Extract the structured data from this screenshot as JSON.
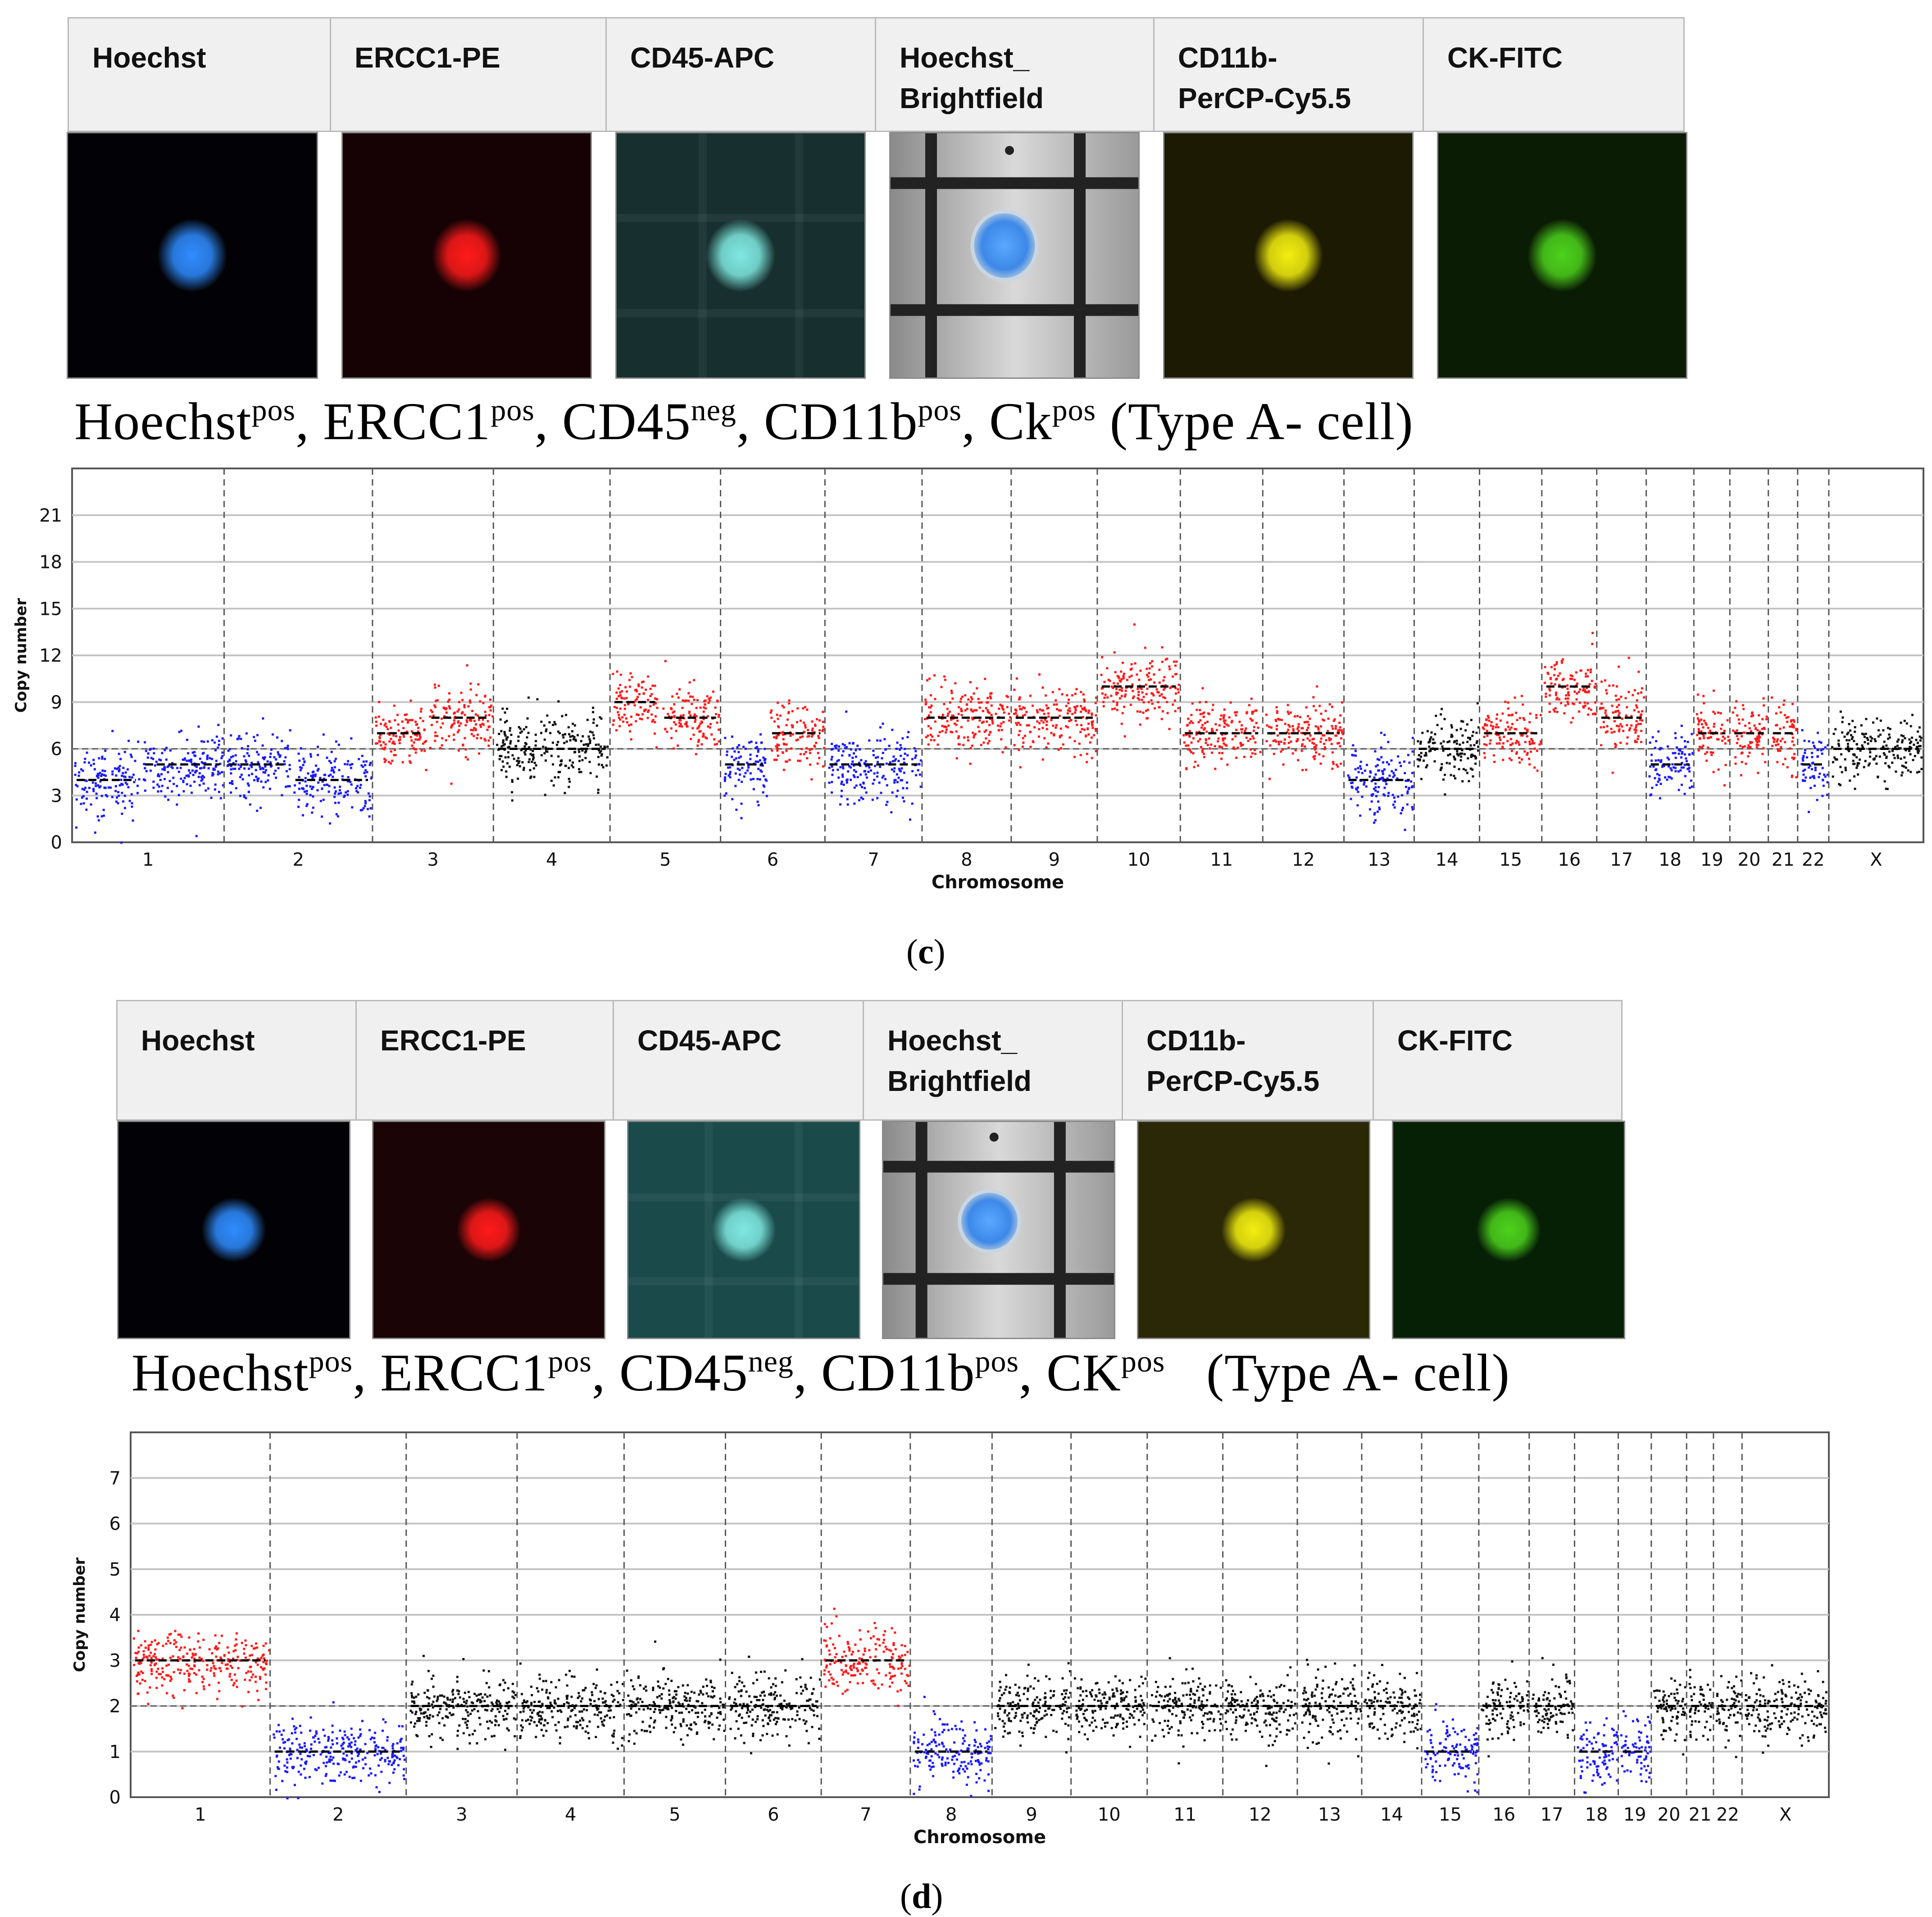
{
  "panels": [
    {
      "id": "c",
      "headers": [
        "Hoechst",
        "ERCC1-PE",
        "CD45-APC",
        "Hoechst_\nBrightfield",
        "CD11b-\nPerCP-Cy5.5",
        "CK-FITC"
      ],
      "phenotype": {
        "parts": [
          {
            "text": "Hoechst",
            "sup": "pos",
            "sep": ", "
          },
          {
            "text": "ERCC1",
            "sup": "pos",
            "sep": ", "
          },
          {
            "text": "CD45",
            "sup": "neg",
            "sep": ", "
          },
          {
            "text": "CD11b",
            "sup": "pos",
            "sep": ", "
          },
          {
            "text": "Ck",
            "sup": "pos",
            "sep": " "
          }
        ],
        "suffix": "(Type A- cell)"
      },
      "letter_open": "(",
      "letter": "c",
      "letter_close": ")"
    },
    {
      "id": "d",
      "headers": [
        "Hoechst",
        "ERCC1-PE",
        "CD45-APC",
        "Hoechst_\nBrightfield",
        "CD11b-\nPerCP-Cy5.5",
        "CK-FITC"
      ],
      "phenotype": {
        "parts": [
          {
            "text": "Hoechst",
            "sup": "pos",
            "sep": ", "
          },
          {
            "text": "ERCC1",
            "sup": "pos",
            "sep": ", "
          },
          {
            "text": "CD45",
            "sup": "neg",
            "sep": ", "
          },
          {
            "text": "CD11b",
            "sup": "pos",
            "sep": ", "
          },
          {
            "text": "CK",
            "sup": "pos",
            "sep": "   "
          }
        ],
        "suffix": "(Type A- cell)"
      },
      "letter_open": "(",
      "letter": "d",
      "letter_close": ")"
    }
  ],
  "colors": {
    "gain": "#ff1a1a",
    "loss": "#1a1aff",
    "neutral": "#111111",
    "hoechst": "#2f8cff",
    "ercc1": "#ff1a1a",
    "cd45": "#7fe8e0",
    "cd11b": "#f2ee10",
    "ck": "#4cd21c"
  },
  "chart_data": [
    {
      "type": "scatter",
      "panel": "c",
      "xlabel": "Chromosome",
      "ylabel": "Copy number",
      "ylim": [
        0,
        24
      ],
      "yticks": [
        0,
        3,
        6,
        9,
        12,
        15,
        18,
        21
      ],
      "baseline": 6,
      "grid": true,
      "chromosomes": [
        "1",
        "2",
        "3",
        "4",
        "5",
        "6",
        "7",
        "8",
        "9",
        "10",
        "11",
        "12",
        "13",
        "14",
        "15",
        "16",
        "17",
        "18",
        "19",
        "20",
        "21",
        "22",
        "X"
      ],
      "segments": [
        {
          "chrom": "1",
          "part": "p",
          "cn": 4,
          "status": "loss"
        },
        {
          "chrom": "1",
          "part": "q",
          "cn": 5,
          "status": "loss"
        },
        {
          "chrom": "2",
          "part": "p",
          "cn": 5,
          "status": "loss"
        },
        {
          "chrom": "2",
          "part": "q",
          "cn": 4,
          "status": "loss"
        },
        {
          "chrom": "3",
          "part": "p",
          "cn": 7,
          "status": "gain"
        },
        {
          "chrom": "3",
          "part": "q",
          "cn": 8,
          "status": "gain"
        },
        {
          "chrom": "4",
          "part": "all",
          "cn": 6,
          "status": "neutral"
        },
        {
          "chrom": "5",
          "part": "p",
          "cn": 9,
          "status": "gain"
        },
        {
          "chrom": "5",
          "part": "q",
          "cn": 8,
          "status": "gain"
        },
        {
          "chrom": "6",
          "part": "p",
          "cn": 5,
          "status": "loss"
        },
        {
          "chrom": "6",
          "part": "q",
          "cn": 7,
          "status": "gain"
        },
        {
          "chrom": "7",
          "part": "all",
          "cn": 5,
          "status": "loss"
        },
        {
          "chrom": "8",
          "part": "all",
          "cn": 8,
          "status": "gain"
        },
        {
          "chrom": "9",
          "part": "all",
          "cn": 8,
          "status": "gain"
        },
        {
          "chrom": "10",
          "part": "all",
          "cn": 10,
          "status": "gain"
        },
        {
          "chrom": "11",
          "part": "all",
          "cn": 7,
          "status": "gain"
        },
        {
          "chrom": "12",
          "part": "all",
          "cn": 7,
          "status": "gain"
        },
        {
          "chrom": "13",
          "part": "all",
          "cn": 4,
          "status": "loss"
        },
        {
          "chrom": "14",
          "part": "all",
          "cn": 6,
          "status": "neutral"
        },
        {
          "chrom": "15",
          "part": "all",
          "cn": 7,
          "status": "gain"
        },
        {
          "chrom": "16",
          "part": "all",
          "cn": 10,
          "status": "gain"
        },
        {
          "chrom": "17",
          "part": "all",
          "cn": 8,
          "status": "gain"
        },
        {
          "chrom": "18",
          "part": "all",
          "cn": 5,
          "status": "loss"
        },
        {
          "chrom": "19",
          "part": "all",
          "cn": 7,
          "status": "gain"
        },
        {
          "chrom": "20",
          "part": "all",
          "cn": 7,
          "status": "gain"
        },
        {
          "chrom": "21",
          "part": "all",
          "cn": 7,
          "status": "gain"
        },
        {
          "chrom": "22",
          "part": "all",
          "cn": 5,
          "status": "loss"
        },
        {
          "chrom": "X",
          "part": "all",
          "cn": 6,
          "status": "neutral"
        }
      ]
    },
    {
      "type": "scatter",
      "panel": "d",
      "xlabel": "Chromosome",
      "ylabel": "Copy number",
      "ylim": [
        0,
        8
      ],
      "yticks": [
        0,
        1,
        2,
        3,
        4,
        5,
        6,
        7
      ],
      "baseline": 2,
      "grid": true,
      "chromosomes": [
        "1",
        "2",
        "3",
        "4",
        "5",
        "6",
        "7",
        "8",
        "9",
        "10",
        "11",
        "12",
        "13",
        "14",
        "15",
        "16",
        "17",
        "18",
        "19",
        "20",
        "21",
        "22",
        "X"
      ],
      "segments": [
        {
          "chrom": "1",
          "part": "all",
          "cn": 3,
          "status": "gain"
        },
        {
          "chrom": "2",
          "part": "all",
          "cn": 1,
          "status": "loss"
        },
        {
          "chrom": "3",
          "part": "all",
          "cn": 2,
          "status": "neutral"
        },
        {
          "chrom": "4",
          "part": "all",
          "cn": 2,
          "status": "neutral"
        },
        {
          "chrom": "5",
          "part": "all",
          "cn": 2,
          "status": "neutral"
        },
        {
          "chrom": "6",
          "part": "all",
          "cn": 2,
          "status": "neutral"
        },
        {
          "chrom": "7",
          "part": "all",
          "cn": 3,
          "status": "gain"
        },
        {
          "chrom": "8",
          "part": "all",
          "cn": 1,
          "status": "loss"
        },
        {
          "chrom": "9",
          "part": "all",
          "cn": 2,
          "status": "neutral"
        },
        {
          "chrom": "10",
          "part": "all",
          "cn": 2,
          "status": "neutral"
        },
        {
          "chrom": "11",
          "part": "all",
          "cn": 2,
          "status": "neutral"
        },
        {
          "chrom": "12",
          "part": "all",
          "cn": 2,
          "status": "neutral"
        },
        {
          "chrom": "13",
          "part": "all",
          "cn": 2,
          "status": "neutral"
        },
        {
          "chrom": "14",
          "part": "all",
          "cn": 2,
          "status": "neutral"
        },
        {
          "chrom": "15",
          "part": "all",
          "cn": 1,
          "status": "loss"
        },
        {
          "chrom": "16",
          "part": "all",
          "cn": 2,
          "status": "neutral"
        },
        {
          "chrom": "17",
          "part": "all",
          "cn": 2,
          "status": "neutral"
        },
        {
          "chrom": "18",
          "part": "all",
          "cn": 1,
          "status": "loss"
        },
        {
          "chrom": "19",
          "part": "all",
          "cn": 1,
          "status": "loss"
        },
        {
          "chrom": "20",
          "part": "all",
          "cn": 2,
          "status": "neutral"
        },
        {
          "chrom": "21",
          "part": "all",
          "cn": 2,
          "status": "neutral"
        },
        {
          "chrom": "22",
          "part": "all",
          "cn": 2,
          "status": "neutral"
        },
        {
          "chrom": "X",
          "part": "all",
          "cn": 2,
          "status": "neutral"
        }
      ]
    }
  ]
}
